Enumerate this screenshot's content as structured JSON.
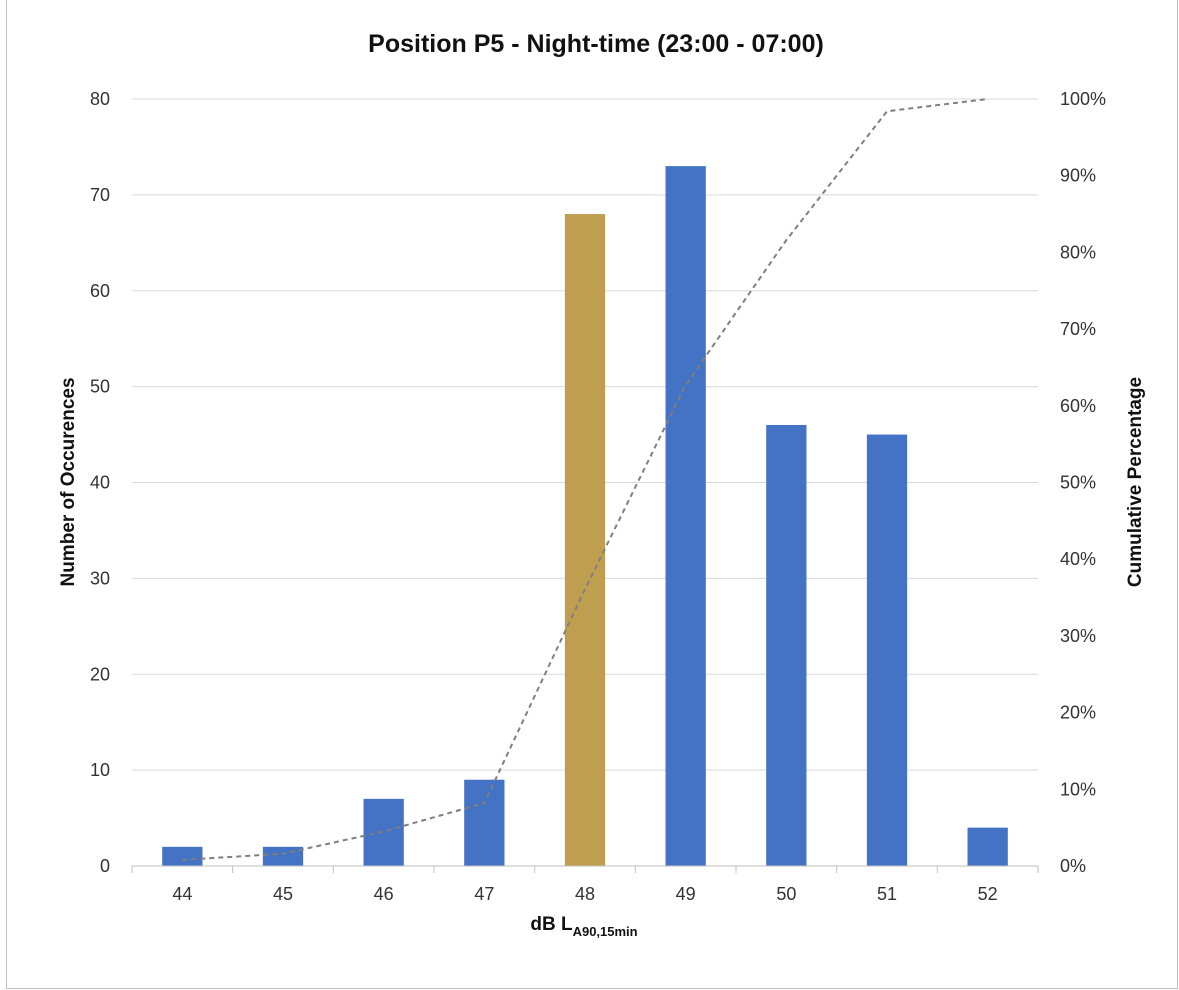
{
  "chart_data": {
    "type": "bar",
    "title": "Position P5 - Night-time (23:00 - 07:00)",
    "xlabel": {
      "main": "dB L",
      "subscript": "A90,15min"
    },
    "ylabel": "Number of Occurences",
    "y2label": "Cumulative Percentage",
    "categories": [
      "44",
      "45",
      "46",
      "47",
      "48",
      "49",
      "50",
      "51",
      "52"
    ],
    "ylim": [
      0,
      80
    ],
    "yticks": [
      0,
      10,
      20,
      30,
      40,
      50,
      60,
      70,
      80
    ],
    "y2lim": [
      0,
      100
    ],
    "y2ticks": [
      "0%",
      "10%",
      "20%",
      "30%",
      "40%",
      "50%",
      "60%",
      "70%",
      "80%",
      "90%",
      "100%"
    ],
    "grid": true,
    "legend": "none",
    "series": [
      {
        "type": "bar",
        "values": [
          2,
          2,
          7,
          9,
          68,
          73,
          46,
          45,
          4
        ],
        "color": "#4472c4",
        "highlight": {
          "category": "48",
          "color": "#c09e4f"
        }
      },
      {
        "type": "line",
        "axis": "secondary",
        "style": "dashed",
        "color": "#7f7f7f",
        "values": [
          0.8,
          1.6,
          4.5,
          8.2,
          36.1,
          62.7,
          81.6,
          98.4,
          100
        ]
      }
    ]
  }
}
